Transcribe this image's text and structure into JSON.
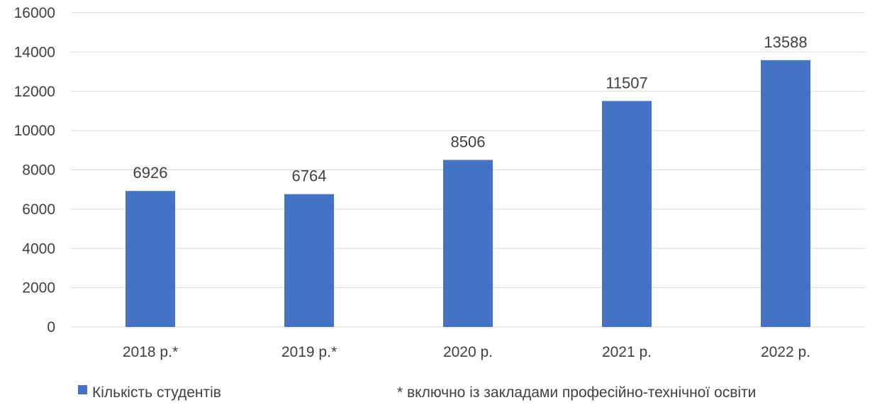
{
  "chart_data": {
    "type": "bar",
    "categories": [
      "2018 р.*",
      "2019 р.*",
      "2020 р.",
      "2021 р.",
      "2022 р."
    ],
    "series": [
      {
        "name": "Кількість студентів",
        "values": [
          6926,
          6764,
          8506,
          11507,
          13588
        ],
        "color": "#4472C4"
      }
    ],
    "ylim": [
      0,
      16000
    ],
    "yticks": [
      0,
      2000,
      4000,
      6000,
      8000,
      10000,
      12000,
      14000,
      16000
    ],
    "grid": true,
    "legend_position": "bottom-left",
    "data_labels": true,
    "footnote": "* включно із закладами професійно-технічної освіти",
    "colors": {
      "bar": "#4472C4",
      "grid": "#d9d9d9",
      "text": "#404040"
    }
  }
}
